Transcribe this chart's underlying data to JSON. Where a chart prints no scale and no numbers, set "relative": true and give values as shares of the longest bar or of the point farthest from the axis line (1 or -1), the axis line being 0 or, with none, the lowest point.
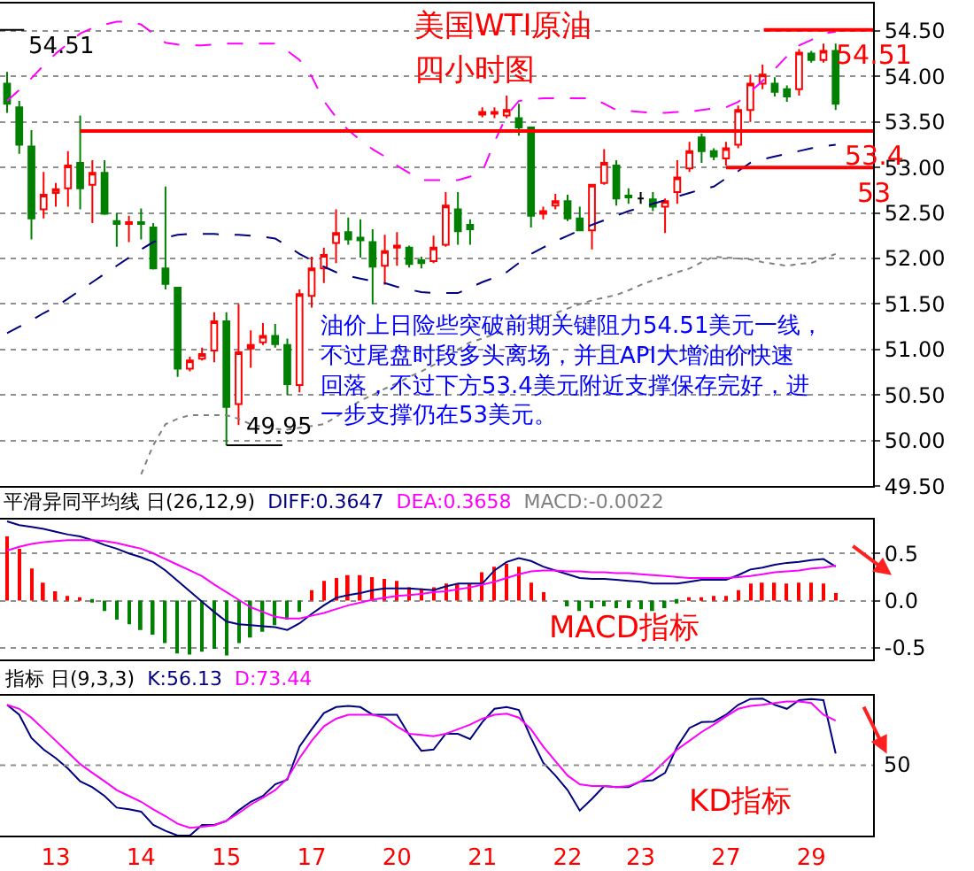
{
  "chart_data": [
    {
      "type": "candlestick",
      "title": "美国WTI原油",
      "subtitle": "四小时图",
      "categories": [
        null,
        null,
        null,
        null,
        "13",
        null,
        null,
        null,
        null,
        null,
        null,
        "14",
        null,
        null,
        null,
        null,
        null,
        null,
        "15",
        null,
        null,
        null,
        null,
        null,
        null,
        "17",
        null,
        null,
        null,
        null,
        null,
        null,
        "20",
        null,
        null,
        null,
        null,
        null,
        null,
        "21",
        null,
        null,
        null,
        null,
        null,
        null,
        "22",
        null,
        null,
        null,
        null,
        null,
        "23",
        null,
        null,
        null,
        null,
        null,
        null,
        "27",
        null,
        null,
        null,
        null,
        null,
        null,
        "29",
        null,
        null
      ],
      "ohlc": [
        [
          53.92,
          54.05,
          53.6,
          53.7
        ],
        [
          53.66,
          53.73,
          53.15,
          53.25
        ],
        [
          53.23,
          53.41,
          52.21,
          52.44
        ],
        [
          52.54,
          52.95,
          52.44,
          52.7
        ],
        [
          52.72,
          52.83,
          52.57,
          52.76
        ],
        [
          52.77,
          53.18,
          52.57,
          53.02
        ],
        [
          53.05,
          53.57,
          52.54,
          52.77
        ],
        [
          52.81,
          53.08,
          52.39,
          52.94
        ],
        [
          52.94,
          53.08,
          52.48,
          52.49
        ],
        [
          52.41,
          52.5,
          52.13,
          52.38
        ],
        [
          52.38,
          52.47,
          52.18,
          52.4
        ],
        [
          52.4,
          52.55,
          52.21,
          52.38
        ],
        [
          52.34,
          52.39,
          51.88,
          51.89
        ],
        [
          51.89,
          52.79,
          51.66,
          51.72
        ],
        [
          51.68,
          51.68,
          50.7,
          50.79
        ],
        [
          50.79,
          50.92,
          50.76,
          50.88
        ],
        [
          50.9,
          51.02,
          50.88,
          50.95
        ],
        [
          50.99,
          51.41,
          50.86,
          51.31
        ],
        [
          51.31,
          51.41,
          49.95,
          50.37
        ],
        [
          50.4,
          51.5,
          50.17,
          50.97
        ],
        [
          51.01,
          51.21,
          50.8,
          51.05
        ],
        [
          51.08,
          51.29,
          51.05,
          51.15
        ],
        [
          51.15,
          51.28,
          51.02,
          51.06
        ],
        [
          51.05,
          51.12,
          50.5,
          50.62
        ],
        [
          50.61,
          51.66,
          50.53,
          51.61
        ],
        [
          51.59,
          52.02,
          51.46,
          51.89
        ],
        [
          51.89,
          52.12,
          51.73,
          52.04
        ],
        [
          52.17,
          52.54,
          51.95,
          52.28
        ],
        [
          52.29,
          52.45,
          52.15,
          52.21
        ],
        [
          52.23,
          52.43,
          52.01,
          52.2
        ],
        [
          52.18,
          52.32,
          51.5,
          51.91
        ],
        [
          51.92,
          52.26,
          51.71,
          52.08
        ],
        [
          52.12,
          52.29,
          51.92,
          52.14
        ],
        [
          52.12,
          52.14,
          51.9,
          51.94
        ],
        [
          51.98,
          52.02,
          51.89,
          51.95
        ],
        [
          51.97,
          52.25,
          51.95,
          52.12
        ],
        [
          52.15,
          52.73,
          52.13,
          52.58
        ],
        [
          52.54,
          52.73,
          52.15,
          52.3
        ],
        [
          52.37,
          52.43,
          52.15,
          52.32
        ],
        [
          53.58,
          53.66,
          53.55,
          53.61
        ],
        [
          53.59,
          53.66,
          53.54,
          53.61
        ],
        [
          53.57,
          53.79,
          53.54,
          53.63
        ],
        [
          53.54,
          53.7,
          53.35,
          53.44
        ],
        [
          53.44,
          53.45,
          52.34,
          52.47
        ],
        [
          52.49,
          52.57,
          52.43,
          52.52
        ],
        [
          52.58,
          52.71,
          52.54,
          52.63
        ],
        [
          52.63,
          52.7,
          52.41,
          52.44
        ],
        [
          52.44,
          52.57,
          52.3,
          52.31
        ],
        [
          52.31,
          52.82,
          52.1,
          52.81
        ],
        [
          52.83,
          53.2,
          52.81,
          53.05
        ],
        [
          53.02,
          53.08,
          52.58,
          52.66
        ],
        [
          52.69,
          52.77,
          52.6,
          52.67
        ],
        [
          52.66,
          52.73,
          52.6,
          52.66
        ],
        [
          52.65,
          52.73,
          52.52,
          52.57
        ],
        [
          52.57,
          52.66,
          52.28,
          52.63
        ],
        [
          52.73,
          53.08,
          52.6,
          52.89
        ],
        [
          52.99,
          53.28,
          52.95,
          53.18
        ],
        [
          53.33,
          53.37,
          53.05,
          53.18
        ],
        [
          53.18,
          53.21,
          53.08,
          53.12
        ],
        [
          53.1,
          53.28,
          53.02,
          53.21
        ],
        [
          53.25,
          53.68,
          53.21,
          53.63
        ],
        [
          53.63,
          54.02,
          53.5,
          53.92
        ],
        [
          53.92,
          54.13,
          53.86,
          54.02
        ],
        [
          53.92,
          53.99,
          53.78,
          53.83
        ],
        [
          53.86,
          53.9,
          53.72,
          53.78
        ],
        [
          53.86,
          54.3,
          53.79,
          54.26
        ],
        [
          54.25,
          54.28,
          54.15,
          54.18
        ],
        [
          54.18,
          54.36,
          54.15,
          54.28
        ],
        [
          54.28,
          54.36,
          53.63,
          53.7
        ]
      ],
      "colors": [
        "#008000",
        "#008000",
        "#008000",
        "#ff0000",
        "#ff0000",
        "#ff0000",
        "#008000",
        "#ff0000",
        "#008000",
        "#008000",
        "#ff0000",
        "#008000",
        "#008000",
        "#008000",
        "#008000",
        "#ff0000",
        "#ff0000",
        "#ff0000",
        "#008000",
        "#ff0000",
        "#ff0000",
        "#ff0000",
        "#008000",
        "#008000",
        "#ff0000",
        "#ff0000",
        "#ff0000",
        "#ff0000",
        "#008000",
        "#008000",
        "#008000",
        "#ff0000",
        "#ff0000",
        "#008000",
        "#008000",
        "#ff0000",
        "#ff0000",
        "#008000",
        "#008000",
        "#ff0000",
        "#ff0000",
        "#ff0000",
        "#008000",
        "#008000",
        "#ff0000",
        "#ff0000",
        "#008000",
        "#008000",
        "#ff0000",
        "#ff0000",
        "#008000",
        "#008000",
        "#000000",
        "#008000",
        "#ff0000",
        "#ff0000",
        "#ff0000",
        "#008000",
        "#008000",
        "#ff0000",
        "#ff0000",
        "#ff0000",
        "#ff0000",
        "#008000",
        "#008000",
        "#ff0000",
        "#008000",
        "#ff0000",
        "#008000"
      ],
      "series": [
        {
          "type": "line",
          "color": "#ff00ff",
          "line_style": "dashed",
          "values": [
            53.73,
            53.85,
            53.98,
            54.12,
            54.25,
            54.36,
            54.47,
            54.53,
            54.57,
            54.6,
            54.6,
            54.57,
            54.47,
            54.37,
            54.35,
            54.34,
            54.34,
            54.35,
            54.36,
            54.36,
            54.36,
            54.36,
            54.36,
            54.28,
            54.18,
            54.0,
            53.73,
            53.55,
            53.41,
            53.3,
            53.2,
            53.12,
            53.02,
            52.94,
            52.86,
            52.86,
            52.86,
            52.86,
            52.9,
            52.95,
            53.28,
            53.57,
            53.73,
            53.75,
            53.76,
            53.76,
            53.76,
            53.76,
            53.76,
            53.7,
            53.63,
            53.62,
            53.61,
            53.6,
            53.6,
            53.61,
            53.61,
            53.63,
            53.65,
            53.66,
            53.72,
            53.83,
            53.95,
            54.08,
            54.22,
            54.34,
            54.4,
            54.47,
            54.49
          ]
        },
        {
          "type": "line",
          "color": "#000080",
          "line_style": "dashed",
          "values": [
            51.18,
            51.25,
            51.32,
            51.4,
            51.47,
            51.56,
            51.65,
            51.74,
            51.83,
            51.92,
            52.01,
            52.1,
            52.18,
            52.23,
            52.26,
            52.27,
            52.27,
            52.27,
            52.26,
            52.26,
            52.25,
            52.24,
            52.22,
            52.14,
            52.05,
            51.98,
            51.91,
            51.85,
            51.81,
            51.78,
            51.75,
            51.73,
            51.69,
            51.66,
            51.63,
            51.62,
            51.62,
            51.62,
            51.68,
            51.74,
            51.79,
            51.85,
            51.95,
            52.05,
            52.12,
            52.19,
            52.25,
            52.31,
            52.37,
            52.42,
            52.47,
            52.52,
            52.56,
            52.6,
            52.64,
            52.68,
            52.72,
            52.76,
            52.79,
            52.88,
            52.96,
            53.05,
            53.09,
            53.12,
            53.15,
            53.18,
            53.21,
            53.23,
            53.25
          ]
        },
        {
          "type": "line",
          "color": "#808080",
          "line_style": "dotted",
          "values": [
            null,
            null,
            null,
            null,
            null,
            null,
            null,
            null,
            null,
            null,
            null,
            49.63,
            49.95,
            50.18,
            50.24,
            50.28,
            50.28,
            50.28,
            50.28,
            50.24,
            50.18,
            50.15,
            50.13,
            50.12,
            50.14,
            50.16,
            50.18,
            50.26,
            50.35,
            50.44,
            50.5,
            50.57,
            50.63,
            50.7,
            50.76,
            50.83,
            50.91,
            51.0,
            51.08,
            51.12,
            51.17,
            51.21,
            51.26,
            51.3,
            51.34,
            51.4,
            51.45,
            51.5,
            51.54,
            51.57,
            51.6,
            51.65,
            51.71,
            51.76,
            51.8,
            51.85,
            51.89,
            51.96,
            52.02,
            52.01,
            52.0,
            51.99,
            51.96,
            51.94,
            51.92,
            51.94,
            51.95,
            52.0,
            52.05
          ]
        }
      ],
      "ref_lines": [
        {
          "axis": "y",
          "value": 54.51,
          "label": "54.51",
          "color": "#ff0000"
        },
        {
          "axis": "y",
          "value": 53.4,
          "label": "53.4",
          "color": "#ff0000"
        },
        {
          "axis": "y",
          "value": 53,
          "label": "53",
          "color": "#ff0000"
        }
      ],
      "annotations": [
        "油价上日险些突破前期关键阻力54.51美元一线，不过尾盘时段多头离场，并且API大增油价快速回落，不过下方53.4美元附近支撑保存完好，进一步支撑仍在53美元。",
        "54.51",
        "49.95"
      ],
      "ylim": [
        49.5,
        54.8
      ],
      "yticks": [
        {
          "value": 49.5,
          "label": "49.50"
        },
        {
          "value": 50,
          "label": "50.00"
        },
        {
          "value": 50.5,
          "label": "50.50"
        },
        {
          "value": 51,
          "label": "51.00"
        },
        {
          "value": 51.5,
          "label": "51.50"
        },
        {
          "value": 52,
          "label": "52.00"
        },
        {
          "value": 52.5,
          "label": "52.50"
        },
        {
          "value": 53,
          "label": "53.00"
        },
        {
          "value": 53.5,
          "label": "53.50"
        },
        {
          "value": 54,
          "label": "54.00"
        },
        {
          "value": 54.5,
          "label": "54.50"
        }
      ],
      "grid": "y",
      "tick_labels": "y"
    },
    {
      "type": "line",
      "title": "平滑异同平均线 日(26,12,9)",
      "categories": [
        null,
        null,
        null,
        null,
        "13",
        null,
        null,
        null,
        null,
        null,
        null,
        "14",
        null,
        null,
        null,
        null,
        null,
        null,
        "15",
        null,
        null,
        null,
        null,
        null,
        null,
        "17",
        null,
        null,
        null,
        null,
        null,
        null,
        "20",
        null,
        null,
        null,
        null,
        null,
        null,
        "21",
        null,
        null,
        null,
        null,
        null,
        null,
        "22",
        null,
        null,
        null,
        null,
        null,
        "23",
        null,
        null,
        null,
        null,
        null,
        null,
        "27",
        null,
        null,
        null,
        null,
        null,
        null,
        "29",
        null,
        null
      ],
      "series": [
        {
          "type": "bar",
          "values": [
            0.68,
            0.55,
            0.34,
            0.19,
            0.1,
            0.05,
            0.02,
            -0.01,
            -0.11,
            -0.2,
            -0.25,
            -0.31,
            -0.36,
            -0.45,
            -0.56,
            -0.57,
            -0.54,
            -0.51,
            -0.58,
            -0.45,
            -0.39,
            -0.33,
            -0.26,
            -0.2,
            -0.12,
            0.11,
            0.21,
            0.24,
            0.27,
            0.27,
            0.25,
            0.23,
            0.21,
            0.14,
            0.13,
            0.14,
            0.18,
            0.18,
            0.18,
            0.3,
            0.36,
            0.39,
            0.36,
            0.19,
            0.09,
            null,
            -0.06,
            -0.11,
            -0.08,
            -0.06,
            -0.08,
            -0.08,
            -0.09,
            -0.11,
            -0.08,
            -0.03,
            0.02,
            0.03,
            0.05,
            0.05,
            0.11,
            0.18,
            0.19,
            0.19,
            0.18,
            0.19,
            0.19,
            0.18,
            0.08
          ],
          "colors": [
            "#ff0000",
            "#ff0000",
            "#ff0000",
            "#ff0000",
            "#ff0000",
            "#ff0000",
            "#ff0000",
            "#008000",
            "#008000",
            "#008000",
            "#008000",
            "#008000",
            "#008000",
            "#008000",
            "#008000",
            "#008000",
            "#008000",
            "#008000",
            "#008000",
            "#008000",
            "#008000",
            "#008000",
            "#008000",
            "#008000",
            "#008000",
            "#ff0000",
            "#ff0000",
            "#ff0000",
            "#ff0000",
            "#ff0000",
            "#ff0000",
            "#ff0000",
            "#ff0000",
            "#ff0000",
            "#ff0000",
            "#ff0000",
            "#ff0000",
            "#ff0000",
            "#ff0000",
            "#ff0000",
            "#ff0000",
            "#ff0000",
            "#ff0000",
            "#ff0000",
            "#ff0000",
            "#ff0000",
            "#008000",
            "#008000",
            "#008000",
            "#008000",
            "#008000",
            "#008000",
            "#008000",
            "#008000",
            "#008000",
            "#008000",
            "#ff0000",
            "#ff0000",
            "#ff0000",
            "#ff0000",
            "#ff0000",
            "#ff0000",
            "#ff0000",
            "#ff0000",
            "#ff0000",
            "#ff0000",
            "#ff0000",
            "#ff0000",
            "#ff0000"
          ]
        },
        {
          "type": "line",
          "name": "DIFF:0.3647",
          "color": "#000080",
          "values": [
            0.84,
            0.8,
            0.78,
            0.76,
            0.73,
            0.7,
            0.68,
            0.64,
            0.59,
            0.55,
            0.5,
            0.46,
            0.41,
            0.32,
            0.21,
            0.1,
            -0.01,
            -0.12,
            -0.22,
            -0.25,
            -0.26,
            -0.27,
            -0.28,
            -0.31,
            -0.24,
            -0.14,
            -0.05,
            0.03,
            0.06,
            0.08,
            0.11,
            0.13,
            0.13,
            0.13,
            0.12,
            0.11,
            0.15,
            0.18,
            0.18,
            0.18,
            0.32,
            0.41,
            0.45,
            0.42,
            0.36,
            0.32,
            0.28,
            0.24,
            0.23,
            0.23,
            0.22,
            0.21,
            0.2,
            0.18,
            0.18,
            0.18,
            0.2,
            0.22,
            0.22,
            0.22,
            0.27,
            0.33,
            0.35,
            0.38,
            0.4,
            0.41,
            0.43,
            0.44,
            0.36
          ]
        },
        {
          "type": "line",
          "name": "DEA:0.3658",
          "color": "#ff00ff",
          "values": [
            0.53,
            0.57,
            0.6,
            0.62,
            0.63,
            0.64,
            0.64,
            0.64,
            0.63,
            0.61,
            0.58,
            0.55,
            0.5,
            0.44,
            0.38,
            0.32,
            0.26,
            0.17,
            0.09,
            0.01,
            -0.07,
            -0.12,
            -0.17,
            -0.19,
            -0.19,
            -0.16,
            -0.13,
            -0.09,
            -0.05,
            -0.02,
            0.01,
            0.03,
            0.05,
            0.06,
            0.07,
            0.09,
            0.1,
            0.12,
            0.14,
            0.17,
            0.2,
            0.24,
            0.28,
            0.31,
            0.32,
            0.32,
            0.31,
            0.31,
            0.3,
            0.3,
            0.29,
            0.29,
            0.28,
            0.27,
            0.26,
            0.25,
            0.24,
            0.24,
            0.24,
            0.24,
            0.25,
            0.26,
            0.28,
            0.3,
            0.31,
            0.32,
            0.34,
            0.35,
            0.37
          ]
        }
      ],
      "annotations": [
        "MACD指标",
        "MACD:-0.0022"
      ],
      "ylim": [
        -0.62,
        0.86
      ],
      "yticks": [
        0.5,
        {
          "value": 0,
          "label": "0.0"
        },
        -0.5
      ],
      "grid": "y",
      "tick_labels": "y"
    },
    {
      "type": "line",
      "title": "指标 日(9,3,3)",
      "categories": [
        null,
        null,
        null,
        null,
        "13",
        null,
        null,
        null,
        null,
        null,
        null,
        "14",
        null,
        null,
        null,
        null,
        null,
        null,
        "15",
        null,
        null,
        null,
        null,
        null,
        null,
        "17",
        null,
        null,
        null,
        null,
        null,
        null,
        "20",
        null,
        null,
        null,
        null,
        null,
        null,
        "21",
        null,
        null,
        null,
        null,
        null,
        null,
        "22",
        null,
        null,
        null,
        null,
        null,
        "23",
        null,
        null,
        null,
        null,
        null,
        null,
        "27",
        null,
        null,
        null,
        null,
        null,
        null,
        "29",
        null,
        null
      ],
      "series": [
        {
          "name": "K:56.13",
          "color": "#000080",
          "values": [
            0.954,
            0.882,
            0.713,
            0.628,
            0.565,
            0.489,
            0.396,
            0.353,
            0.289,
            0.204,
            0.192,
            0.175,
            0.078,
            0.035,
            0.0,
            0.0,
            0.078,
            0.078,
            0.107,
            0.183,
            0.247,
            0.289,
            0.374,
            0.408,
            0.65,
            0.776,
            0.894,
            0.938,
            0.946,
            0.938,
            0.882,
            0.882,
            0.882,
            0.735,
            0.619,
            0.628,
            0.743,
            0.743,
            0.704,
            0.828,
            0.925,
            0.938,
            0.917,
            0.713,
            0.531,
            0.438,
            0.332,
            0.183,
            0.268,
            0.361,
            0.353,
            0.353,
            0.396,
            0.404,
            0.458,
            0.65,
            0.785,
            0.828,
            0.832,
            0.882,
            0.954,
            0.997,
            1.0,
            0.954,
            0.925,
            0.988,
            0.997,
            0.988,
            0.599
          ]
        },
        {
          "name": "D:73.44",
          "color": "#ff00ff",
          "values": [
            0.954,
            0.925,
            0.861,
            0.776,
            0.692,
            0.607,
            0.522,
            0.458,
            0.396,
            0.332,
            0.289,
            0.247,
            0.192,
            0.142,
            0.086,
            0.057,
            0.065,
            0.074,
            0.107,
            0.163,
            0.226,
            0.276,
            0.332,
            0.417,
            0.565,
            0.692,
            0.797,
            0.853,
            0.882,
            0.882,
            0.882,
            0.861,
            0.797,
            0.743,
            0.735,
            0.725,
            0.743,
            0.776,
            0.81,
            0.853,
            0.882,
            0.89,
            0.861,
            0.776,
            0.65,
            0.543,
            0.438,
            0.374,
            0.361,
            0.361,
            0.353,
            0.361,
            0.396,
            0.458,
            0.543,
            0.628,
            0.692,
            0.756,
            0.81,
            0.869,
            0.925,
            0.946,
            0.954,
            0.967,
            0.979,
            0.979,
            0.967,
            0.882,
            0.839
          ]
        }
      ],
      "annotations": [
        "KD指标",
        "50"
      ],
      "ref_lines": [
        {
          "axis": "y",
          "value": 0.514,
          "color": "#909090",
          "line_style": "dotted"
        }
      ],
      "relative": true
    }
  ]
}
